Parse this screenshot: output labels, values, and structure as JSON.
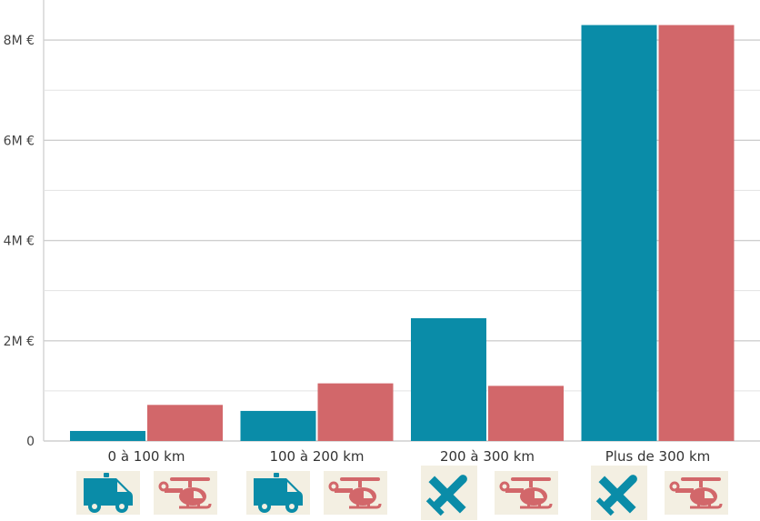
{
  "chart_data": {
    "type": "bar",
    "categories": [
      "0 à 100 km",
      "100 à 200 km",
      "200 à 300 km",
      "Plus de 300 km"
    ],
    "series": [
      {
        "values": [
          0.2,
          0.6,
          2.45,
          8.3
        ],
        "color": "#0a8ca8"
      },
      {
        "values": [
          0.72,
          1.15,
          1.1,
          8.3
        ],
        "color": "#d2676a"
      }
    ],
    "ylim": [
      0,
      8.8
    ],
    "yticks": [
      0,
      2,
      4,
      6,
      8
    ],
    "ytick_labels": [
      "0",
      "2M €",
      "4M €",
      "6M €",
      "8M €"
    ],
    "minor_gridlines": [
      1,
      3,
      5,
      7
    ],
    "grid": true,
    "title": "",
    "xlabel": "",
    "ylabel": ""
  },
  "icons": [
    [
      {
        "name": "ambulance-icon",
        "color": "#0a8ca8"
      },
      {
        "name": "helicopter-icon",
        "color": "#d2676a"
      }
    ],
    [
      {
        "name": "ambulance-icon",
        "color": "#0a8ca8"
      },
      {
        "name": "helicopter-icon",
        "color": "#d2676a"
      }
    ],
    [
      {
        "name": "airplane-icon",
        "color": "#0a8ca8"
      },
      {
        "name": "helicopter-icon",
        "color": "#d2676a"
      }
    ],
    [
      {
        "name": "airplane-icon",
        "color": "#0a8ca8"
      },
      {
        "name": "helicopter-icon",
        "color": "#d2676a"
      }
    ]
  ]
}
